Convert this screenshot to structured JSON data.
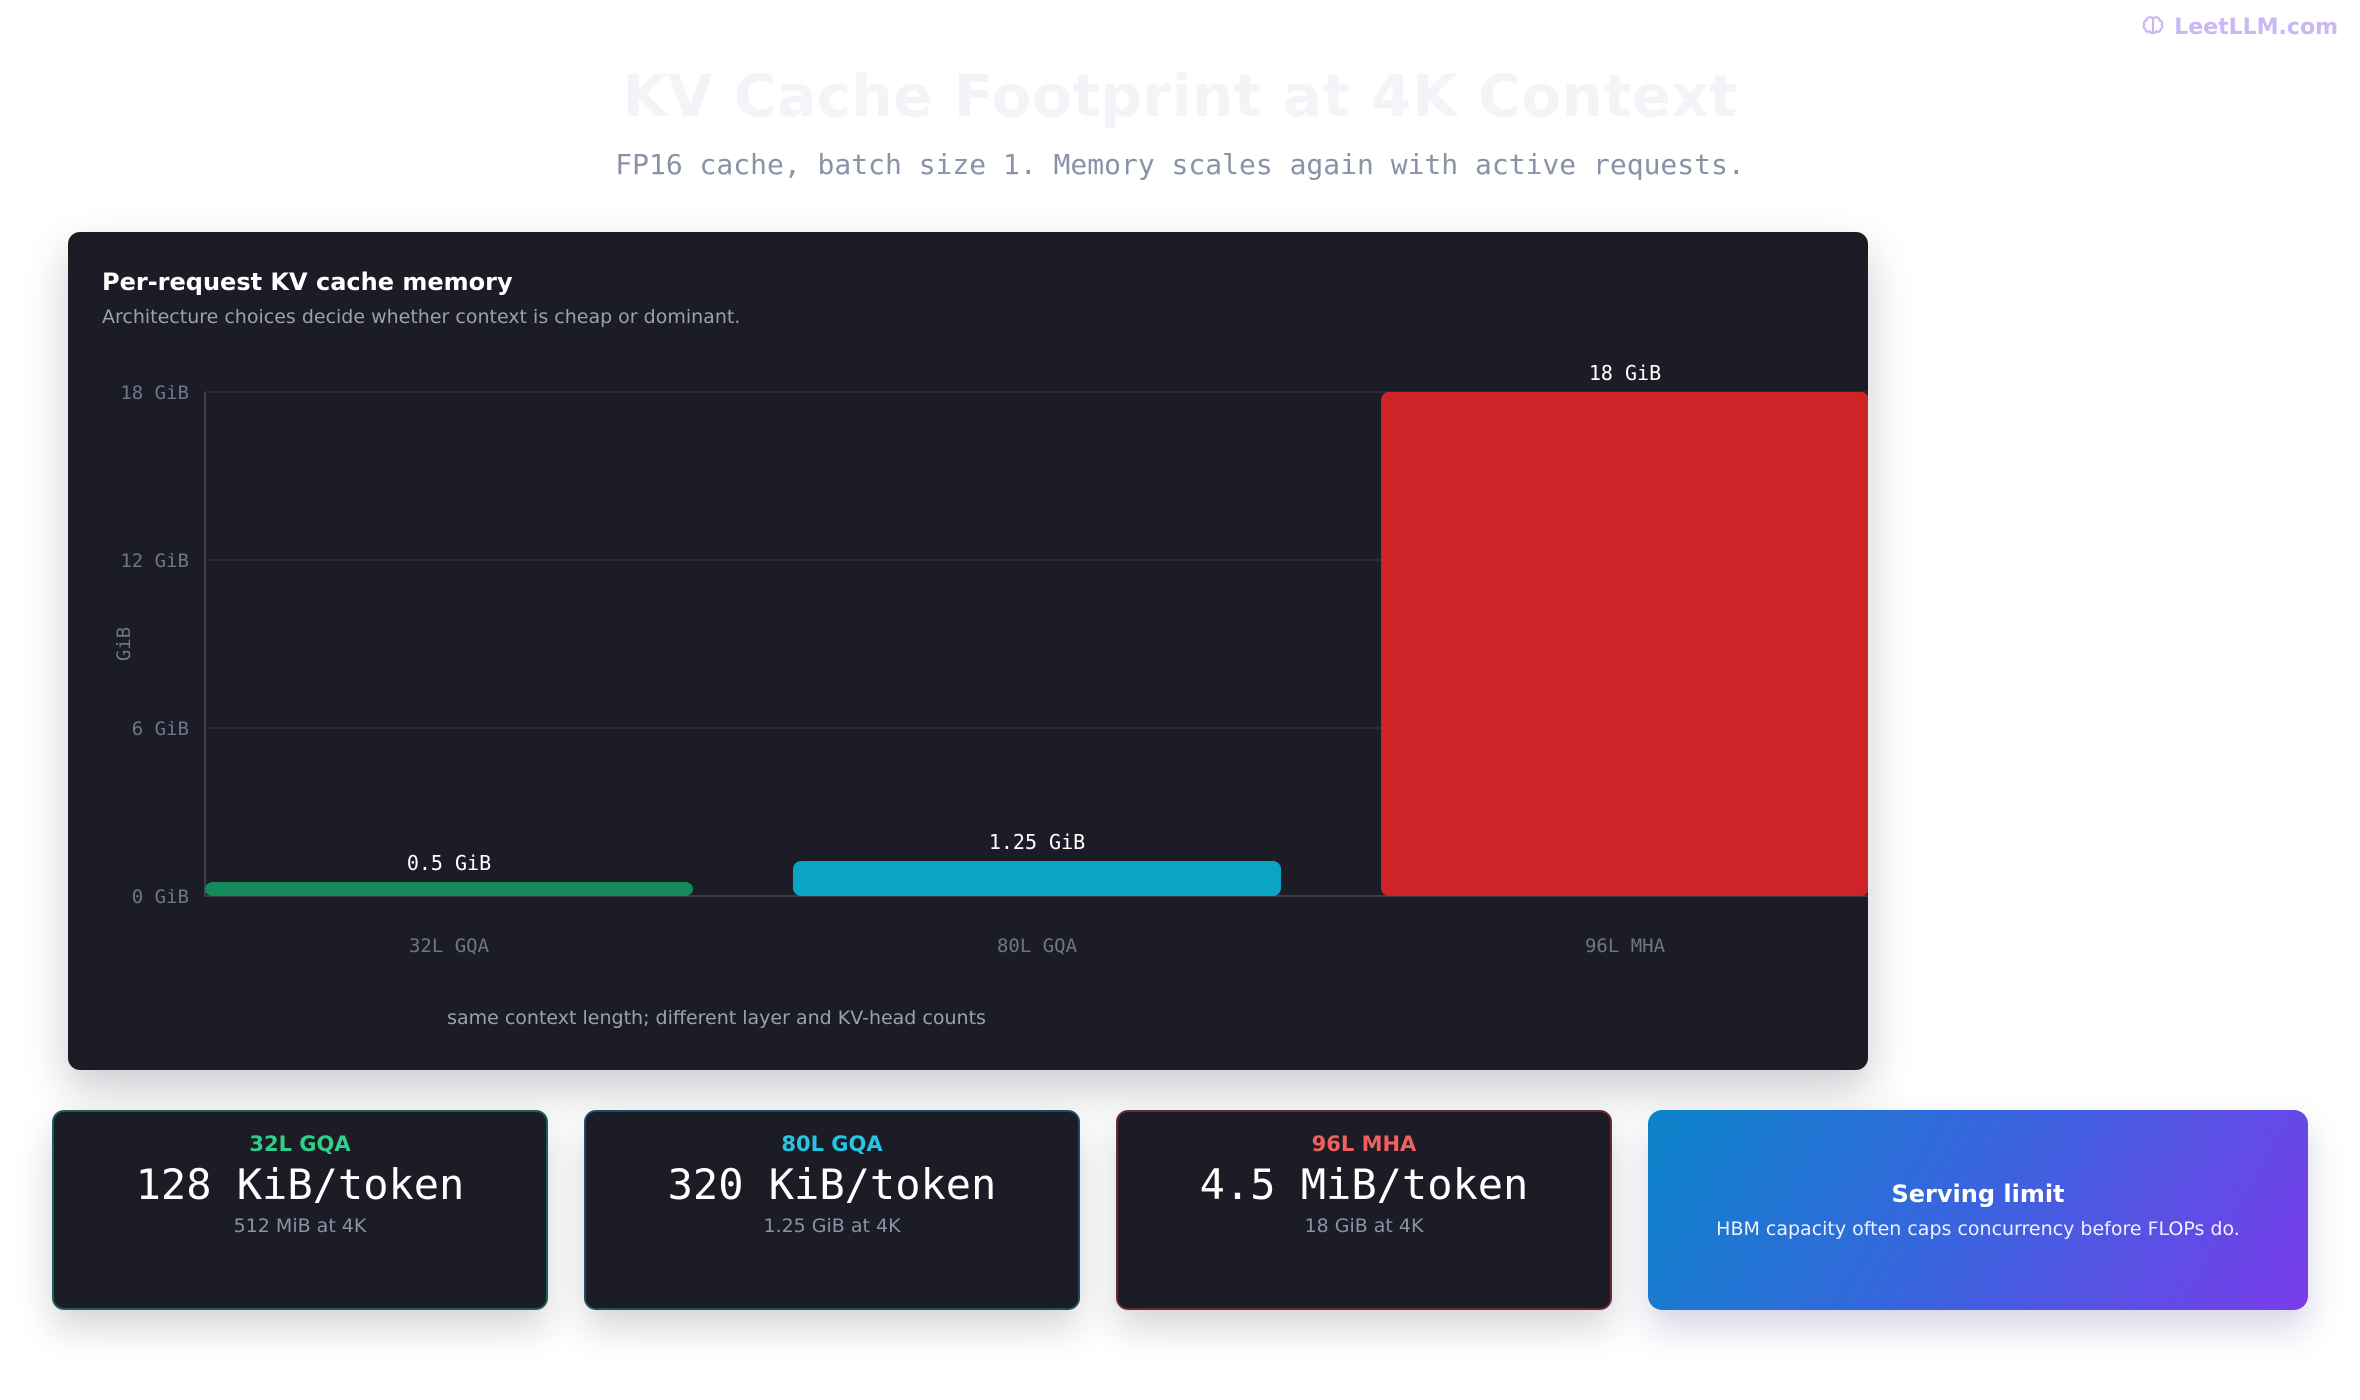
{
  "brand": {
    "name": "LeetLLM.com",
    "icon": "brain-icon"
  },
  "header": {
    "title": "KV Cache Footprint at 4K Context",
    "subtitle": "FP16 cache, batch size 1. Memory scales again with active requests."
  },
  "chart_data": {
    "type": "bar",
    "title": "Per-request KV cache memory",
    "subtitle": "Architecture choices decide whether context is cheap or dominant.",
    "categories": [
      "32L GQA",
      "80L GQA",
      "96L MHA"
    ],
    "values": [
      0.5,
      1.25,
      18
    ],
    "value_labels": [
      "0.5 GiB",
      "1.25 GiB",
      "18 GiB"
    ],
    "colors": [
      "#168a5c",
      "#0aa5c6",
      "#cf2427"
    ],
    "ylabel": "GiB",
    "xlabel": "same context length; different layer and KV-head counts",
    "ylim": [
      0,
      18
    ],
    "yticks": [
      0,
      6,
      12,
      18
    ],
    "ytick_labels": [
      "0 GiB",
      "6 GiB",
      "12 GiB",
      "18 GiB"
    ],
    "grid": true
  },
  "stats": [
    {
      "name": "32L GQA",
      "value": "128 KiB/token",
      "note": "512 MiB at 4K",
      "accent": "#2fcf8a",
      "border": "#1f5e56"
    },
    {
      "name": "80L GQA",
      "value": "320 KiB/token",
      "note": "1.25 GiB at 4K",
      "accent": "#27c4e6",
      "border": "#1d4f63"
    },
    {
      "name": "96L MHA",
      "value": "4.5 MiB/token",
      "note": "18 GiB at 4K",
      "accent": "#f0605c",
      "border": "#6a2a34"
    }
  ],
  "limit": {
    "title": "Serving limit",
    "text": "HBM capacity often caps concurrency before FLOPs do."
  }
}
